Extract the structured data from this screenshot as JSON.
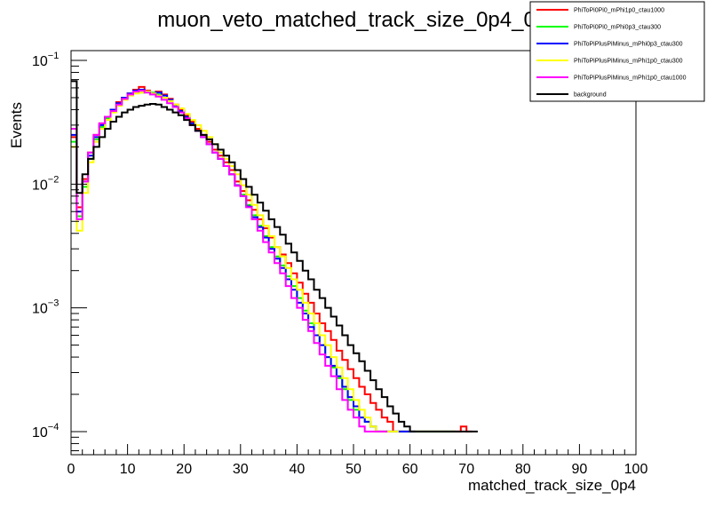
{
  "chart_data": {
    "type": "line",
    "title": "muon_veto_matched_track_size_0p4_0",
    "xlabel": "matched_track_size_0p4",
    "ylabel": "Events",
    "xlim": [
      0,
      100
    ],
    "ylim": [
      6.5e-05,
      0.12
    ],
    "yscale": "log",
    "x_ticks": [
      "0",
      "10",
      "20",
      "30",
      "40",
      "50",
      "60",
      "70",
      "80",
      "90",
      "100"
    ],
    "y_ticks": [
      {
        "value": 0.1,
        "mantissa": "10",
        "exp": "−1"
      },
      {
        "value": 0.01,
        "mantissa": "10",
        "exp": "−2"
      },
      {
        "value": 0.001,
        "mantissa": "10",
        "exp": "−3"
      },
      {
        "value": 0.0001,
        "mantissa": "10",
        "exp": "−4"
      }
    ],
    "legend_position": "top-right",
    "bin_width": 1,
    "series": [
      {
        "name": "PhiToPi0Pi0_mPhi1p0_ctau1000",
        "color": "#ff0000",
        "values": [
          0.024,
          0.0065,
          0.011,
          0.018,
          0.025,
          0.031,
          0.035,
          0.04,
          0.046,
          0.05,
          0.054,
          0.058,
          0.061,
          0.057,
          0.054,
          0.056,
          0.053,
          0.049,
          0.044,
          0.04,
          0.036,
          0.032,
          0.028,
          0.025,
          0.022,
          0.019,
          0.017,
          0.015,
          0.013,
          0.0105,
          0.0088,
          0.0074,
          0.0062,
          0.0052,
          0.0044,
          0.0037,
          0.0031,
          0.0027,
          0.0023,
          0.0019,
          0.0016,
          0.0013,
          0.0011,
          0.0009,
          0.00075,
          0.00065,
          0.00055,
          0.00045,
          0.00038,
          0.00032,
          0.00027,
          0.00023,
          0.0002,
          0.00017,
          0.00015,
          0.00013,
          0.00012,
          0.0001,
          0.0001,
          0.0001,
          0.0001,
          0.0001,
          0.0001,
          0.0001,
          0.0001,
          0.0001,
          0.0001,
          0.0001,
          0.0001,
          0.00011,
          0.0001,
          null,
          null,
          null,
          null,
          null,
          null,
          null,
          null,
          null,
          null,
          null,
          null,
          null,
          null,
          null,
          null,
          null,
          null,
          null,
          null,
          null,
          null,
          null,
          null,
          null,
          null,
          null,
          null,
          null
        ]
      },
      {
        "name": "PhiToPi0Pi0_mPhi0p3_ctau300",
        "color": "#00ff00",
        "values": [
          0.022,
          0.0055,
          0.0095,
          0.016,
          0.023,
          0.029,
          0.034,
          0.039,
          0.044,
          0.049,
          0.053,
          0.056,
          0.055,
          0.056,
          0.055,
          0.053,
          0.05,
          0.047,
          0.043,
          0.039,
          0.035,
          0.031,
          0.027,
          0.024,
          0.021,
          0.018,
          0.016,
          0.014,
          0.012,
          0.0098,
          0.0082,
          0.0068,
          0.0056,
          0.0046,
          0.0038,
          0.0031,
          0.0026,
          0.0022,
          0.0018,
          0.0015,
          0.0012,
          0.00095,
          0.00075,
          0.0006,
          0.0005,
          0.0004,
          0.00033,
          0.00027,
          0.00022,
          0.00018,
          0.00015,
          0.00013,
          0.00012,
          0.00011,
          0.0001,
          0.0001,
          0.0001,
          0.0001,
          0.0001,
          0.0001,
          0.0001,
          0.0001,
          0.0001,
          0.0001,
          0.0001,
          0.0001,
          0.0001,
          0.0001,
          null,
          null,
          null,
          null,
          null,
          null,
          null,
          null,
          null,
          null,
          null,
          null,
          null,
          null,
          null,
          null,
          null,
          null,
          null,
          null,
          null,
          null,
          null,
          null,
          null,
          null,
          null,
          null,
          null,
          null,
          null,
          null,
          null,
          null
        ]
      },
      {
        "name": "PhiToPiPlusPiMinus_mPhi0p3_ctau300",
        "color": "#0000ff",
        "values": [
          0.025,
          0.006,
          0.0105,
          0.017,
          0.024,
          0.03,
          0.035,
          0.04,
          0.045,
          0.05,
          0.054,
          0.057,
          0.058,
          0.056,
          0.054,
          0.055,
          0.052,
          0.048,
          0.043,
          0.039,
          0.035,
          0.031,
          0.027,
          0.024,
          0.021,
          0.018,
          0.016,
          0.014,
          0.012,
          0.0098,
          0.008,
          0.0066,
          0.0054,
          0.0045,
          0.0037,
          0.003,
          0.0025,
          0.0021,
          0.0017,
          0.0014,
          0.0011,
          0.0009,
          0.0007,
          0.0006,
          0.0005,
          0.0004,
          0.00034,
          0.00028,
          0.00023,
          0.00019,
          0.00016,
          0.00013,
          0.00012,
          0.00011,
          0.0001,
          0.0001,
          0.0001,
          0.0001,
          0.0001,
          0.0001,
          0.0001,
          null,
          null,
          null,
          null,
          null,
          null,
          null,
          null,
          null,
          null,
          null,
          null,
          null,
          null,
          null,
          null,
          null,
          null,
          null,
          null,
          null,
          null,
          null,
          null,
          null,
          null,
          null,
          null,
          null,
          null,
          null,
          null,
          null,
          null,
          null,
          null,
          null,
          null,
          null
        ]
      },
      {
        "name": "PhiToPiPlusPiMinus_mPhi1p0_ctau300",
        "color": "#ffff00",
        "values": [
          0.02,
          0.0042,
          0.0085,
          0.015,
          0.022,
          0.028,
          0.033,
          0.038,
          0.043,
          0.048,
          0.052,
          0.054,
          0.055,
          0.056,
          0.054,
          0.052,
          0.05,
          0.047,
          0.044,
          0.041,
          0.037,
          0.033,
          0.03,
          0.027,
          0.024,
          0.021,
          0.018,
          0.016,
          0.014,
          0.012,
          0.0098,
          0.0082,
          0.0068,
          0.0056,
          0.0046,
          0.0038,
          0.0031,
          0.0026,
          0.0021,
          0.0017,
          0.0014,
          0.0011,
          0.0009,
          0.00075,
          0.0006,
          0.0005,
          0.0004,
          0.00033,
          0.00027,
          0.00022,
          0.00018,
          0.00015,
          0.00013,
          0.00011,
          0.0001,
          0.0001,
          0.0001,
          0.0001,
          null,
          null,
          null,
          null,
          null,
          null,
          null,
          null,
          null,
          null,
          null,
          null,
          null,
          null,
          null,
          null,
          null,
          null,
          null,
          null,
          null,
          null,
          null,
          null,
          null,
          null,
          null,
          null,
          null,
          null,
          null,
          null,
          null,
          null,
          null,
          null,
          null,
          null,
          null,
          null,
          null,
          null
        ]
      },
      {
        "name": "PhiToPiPlusPiMinus_mPhi1p0_ctau1000",
        "color": "#ff00ff",
        "values": [
          0.028,
          0.0052,
          0.0105,
          0.018,
          0.025,
          0.031,
          0.035,
          0.039,
          0.044,
          0.049,
          0.053,
          0.056,
          0.057,
          0.055,
          0.053,
          0.051,
          0.048,
          0.045,
          0.042,
          0.038,
          0.034,
          0.03,
          0.027,
          0.024,
          0.021,
          0.018,
          0.016,
          0.014,
          0.012,
          0.0097,
          0.008,
          0.0065,
          0.0052,
          0.0042,
          0.0034,
          0.0028,
          0.0023,
          0.0019,
          0.0015,
          0.0012,
          0.001,
          0.0008,
          0.00065,
          0.00052,
          0.00042,
          0.00034,
          0.00028,
          0.00022,
          0.00018,
          0.00015,
          0.00013,
          0.00011,
          0.0001,
          0.0001,
          0.0001,
          0.0001,
          null,
          null,
          null,
          null,
          null,
          null,
          null,
          null,
          null,
          null,
          null,
          null,
          null,
          null,
          null,
          null,
          null,
          null,
          null,
          null,
          null,
          null,
          null,
          null,
          null,
          null,
          null,
          null,
          null,
          null,
          null,
          null,
          null,
          null,
          null,
          null,
          null,
          null,
          null,
          null,
          null,
          null,
          null,
          null
        ]
      },
      {
        "name": "background",
        "color": "#000000",
        "values": [
          0.068,
          0.0085,
          0.012,
          0.016,
          0.02,
          0.024,
          0.028,
          0.032,
          0.035,
          0.038,
          0.04,
          0.042,
          0.043,
          0.044,
          0.0445,
          0.044,
          0.042,
          0.04,
          0.038,
          0.036,
          0.033,
          0.03,
          0.027,
          0.025,
          0.023,
          0.021,
          0.019,
          0.017,
          0.015,
          0.013,
          0.011,
          0.0095,
          0.0082,
          0.0071,
          0.0061,
          0.0052,
          0.0045,
          0.0039,
          0.0033,
          0.0028,
          0.0024,
          0.002,
          0.0017,
          0.0014,
          0.0012,
          0.001,
          0.00085,
          0.00072,
          0.0006,
          0.0005,
          0.00043,
          0.00037,
          0.00031,
          0.00026,
          0.00022,
          0.00019,
          0.00016,
          0.00014,
          0.00012,
          0.00011,
          0.0001,
          0.0001,
          0.0001,
          0.0001,
          0.0001,
          0.0001,
          0.0001,
          0.0001,
          0.0001,
          0.0001,
          0.0001,
          0.0001,
          null,
          null,
          null,
          null,
          null,
          null,
          null,
          null,
          null,
          null,
          null,
          null,
          null,
          null,
          null,
          null,
          null,
          null,
          null,
          null,
          null,
          null,
          null,
          null,
          null,
          null,
          null,
          null
        ]
      }
    ]
  }
}
